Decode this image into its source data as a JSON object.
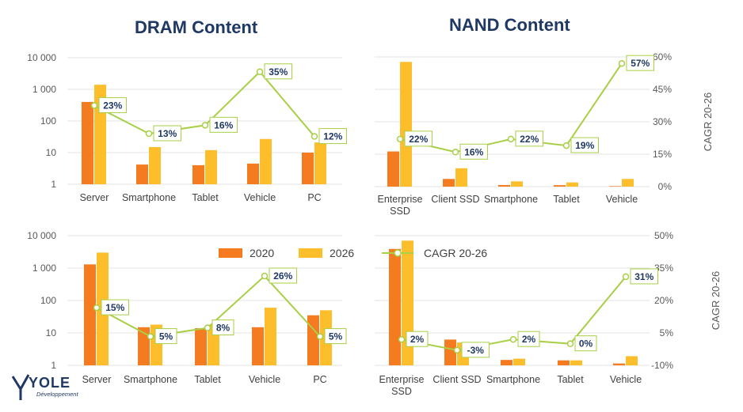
{
  "titles": {
    "dram": "DRAM Content",
    "nand": "NAND Content"
  },
  "logo": {
    "word": "YOLE",
    "sub": "Développement"
  },
  "legend": {
    "series1": "2020",
    "series2": "2026",
    "line": "CAGR 20-26"
  },
  "colors": {
    "s2020": "#f47b20",
    "s2026": "#fcbe2b",
    "cagr": "#a8cf45",
    "text": "#1f3864"
  },
  "chart_data": [
    {
      "id": "dram-top",
      "type": "bar",
      "scale": "log",
      "title": "DRAM Content",
      "categories": [
        "Server",
        "Smartphone",
        "Tablet",
        "Vehicle",
        "PC"
      ],
      "yticks": [
        "10 000",
        "1 000",
        "100",
        "10",
        "1"
      ],
      "series": [
        {
          "name": "2020",
          "values": [
            400,
            4.2,
            4,
            4.5,
            10
          ]
        },
        {
          "name": "2026",
          "values": [
            1400,
            15,
            12,
            27,
            21
          ]
        }
      ],
      "cagr": {
        "values": [
          23,
          13,
          16,
          35,
          12
        ],
        "labels": [
          "23%",
          "13%",
          "16%",
          "35%",
          "12%"
        ]
      }
    },
    {
      "id": "nand-top",
      "type": "bar",
      "scale": "linear",
      "title": "NAND Content",
      "categories": [
        "Enterprise SSD",
        "Client SSD",
        "Smartphone",
        "Tablet",
        "Vehicle"
      ],
      "series": [
        {
          "name": "2020",
          "values": [
            2200,
            480,
            100,
            92,
            33
          ]
        },
        {
          "name": "2026",
          "values": [
            7800,
            1150,
            330,
            260,
            480
          ]
        }
      ],
      "cagr": {
        "values": [
          22,
          16,
          22,
          19,
          57
        ],
        "labels": [
          "22%",
          "16%",
          "22%",
          "19%",
          "57%"
        ],
        "ylim": [
          0,
          60
        ],
        "yticks": [
          "60%",
          "45%",
          "30%",
          "15%",
          "0%"
        ],
        "ylabel": "CAGR 20-26"
      }
    },
    {
      "id": "dram-bottom",
      "type": "bar",
      "scale": "log",
      "categories": [
        "Server",
        "Smartphone",
        "Tablet",
        "Vehicle",
        "PC"
      ],
      "yticks": [
        "10 000",
        "1 000",
        "100",
        "10",
        "1"
      ],
      "series": [
        {
          "name": "2020",
          "values": [
            1300,
            15,
            14,
            15,
            35
          ]
        },
        {
          "name": "2026",
          "values": [
            3000,
            18,
            18,
            60,
            50
          ]
        }
      ],
      "cagr": {
        "values": [
          15,
          5,
          8,
          26,
          5
        ],
        "labels": [
          "15%",
          "5%",
          "8%",
          "26%",
          "5%"
        ]
      }
    },
    {
      "id": "nand-bottom",
      "type": "bar",
      "scale": "linear",
      "categories": [
        "Enterprise SSD",
        "Client SSD",
        "Smartphone",
        "Tablet",
        "Vehicle"
      ],
      "series": [
        {
          "name": "2020",
          "values": [
            280,
            62,
            13,
            12,
            4.5
          ]
        },
        {
          "name": "2026",
          "values": [
            300,
            55,
            16,
            12,
            22
          ]
        }
      ],
      "cagr": {
        "values": [
          2,
          -3,
          2,
          0,
          31
        ],
        "labels": [
          "2%",
          "-3%",
          "2%",
          "0%",
          "31%"
        ],
        "ylim": [
          -10,
          50
        ],
        "yticks": [
          "50%",
          "35%",
          "20%",
          "5%",
          "-10%"
        ],
        "ylabel": "CAGR 20-26"
      }
    }
  ]
}
